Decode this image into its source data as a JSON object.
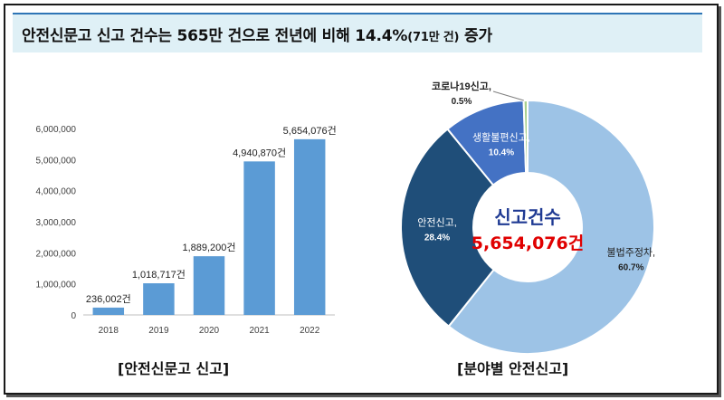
{
  "header": {
    "title_main": "안전신문고 신고 건수는 565만 건으로 전년에 비해 14.4%",
    "title_paren": "(71만 건)",
    "title_end": " 증가"
  },
  "chart_data": [
    {
      "type": "bar",
      "categories": [
        "2018",
        "2019",
        "2020",
        "2021",
        "2022"
      ],
      "values": [
        236002,
        1018717,
        1889200,
        4940870,
        5654076
      ],
      "data_labels": [
        "236,002건",
        "1,018,717건",
        "1,889,200건",
        "4,940,870건",
        "5,654,076건"
      ],
      "yticks": [
        "0",
        "1,000,000",
        "2,000,000",
        "3,000,000",
        "4,000,000",
        "5,000,000",
        "6,000,000"
      ],
      "ylim": [
        0,
        6000000
      ],
      "color": "#5b9bd5",
      "caption": "[안전신문고 신고]"
    },
    {
      "type": "pie",
      "style": "donut",
      "center_title": "신고건수",
      "center_value": "5,654,076건",
      "slices": [
        {
          "name": "불법주정차,",
          "pct_label": "60.7%",
          "value": 60.7,
          "color": "#9dc3e6"
        },
        {
          "name": "안전신고,",
          "pct_label": "28.4%",
          "value": 28.4,
          "color": "#1f4e79"
        },
        {
          "name": "생활불편신고,",
          "pct_label": "10.4%",
          "value": 10.4,
          "color": "#4472c4"
        },
        {
          "name": "코로나19신고,",
          "pct_label": "0.5%",
          "value": 0.5,
          "color": "#a9d18e"
        }
      ],
      "caption": "[분야별 안전신고]"
    }
  ]
}
